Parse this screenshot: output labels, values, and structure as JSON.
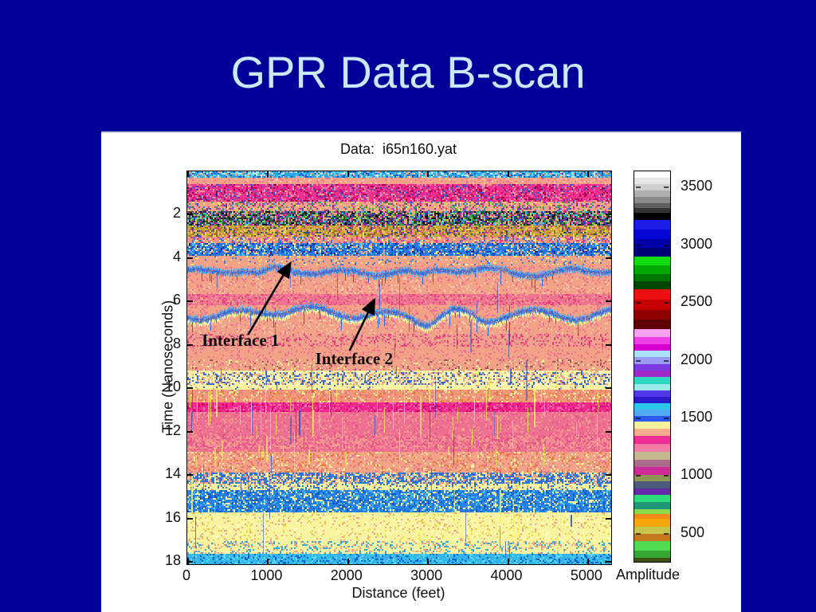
{
  "slide": {
    "title": "GPR Data B-scan",
    "background_color": "#000099",
    "title_color": "#c9e9f8",
    "panel_color": "#ffffff"
  },
  "chart_data": {
    "type": "heatmap",
    "title": "Data:  i65n160.yat",
    "xlabel": "Distance (feet)",
    "ylabel": "Time (Nanoseconds)",
    "x_range": [
      0,
      5300
    ],
    "y_range": [
      0,
      18.1
    ],
    "x_ticks": [
      0,
      1000,
      2000,
      3000,
      4000,
      5000
    ],
    "y_ticks": [
      2,
      4,
      6,
      8,
      10,
      12,
      14,
      16,
      18
    ],
    "grid": false,
    "annotations": [
      {
        "text": "Interface 1",
        "tx": 180,
        "ty": 7.35,
        "arrow": {
          "x1": 760,
          "y1": 7.53,
          "x2": 1290,
          "y2": 4.22
        }
      },
      {
        "text": "Interface 2",
        "tx": 1600,
        "ty": 8.2,
        "arrow": {
          "x1": 2030,
          "y1": 8.26,
          "x2": 2340,
          "y2": 5.91
        }
      }
    ],
    "colorbar": {
      "label": "Amplitude",
      "ticks": [
        {
          "label": "3500",
          "f": 0.041
        },
        {
          "label": "3000",
          "f": 0.19
        },
        {
          "label": "2500",
          "f": 0.337
        },
        {
          "label": "2000",
          "f": 0.486
        },
        {
          "label": "1500",
          "f": 0.633
        },
        {
          "label": "1000",
          "f": 0.78
        },
        {
          "label": "500",
          "f": 0.929
        }
      ],
      "stripes": [
        {
          "h": 8,
          "c": "#FFFFFF"
        },
        {
          "h": 8,
          "c": "#E6E6E6"
        },
        {
          "h": 8,
          "c": "#CFCFCF"
        },
        {
          "h": 8,
          "c": "#AFAFAF"
        },
        {
          "h": 8,
          "c": "#8A8A8A"
        },
        {
          "h": 7,
          "c": "#5E5E5E"
        },
        {
          "h": 6,
          "c": "#333333"
        },
        {
          "h": 9,
          "c": "#000000"
        },
        {
          "h": 12,
          "c": "#1C1CE8"
        },
        {
          "h": 12,
          "c": "#0606D6"
        },
        {
          "h": 11,
          "c": "#0000A6"
        },
        {
          "h": 11,
          "c": "#000076"
        },
        {
          "h": 11,
          "c": "#10DC10"
        },
        {
          "h": 11,
          "c": "#00A800"
        },
        {
          "h": 10,
          "c": "#007600"
        },
        {
          "h": 10,
          "c": "#004600"
        },
        {
          "h": 13,
          "c": "#EE1010"
        },
        {
          "h": 13,
          "c": "#C60000"
        },
        {
          "h": 12,
          "c": "#8E0000"
        },
        {
          "h": 12,
          "c": "#5E0000"
        },
        {
          "h": 10,
          "c": "#F8A0F2"
        },
        {
          "h": 9,
          "c": "#F03EE6"
        },
        {
          "h": 8,
          "c": "#D600CE"
        },
        {
          "h": 9,
          "c": "#A8E0F8"
        },
        {
          "h": 9,
          "c": "#9A9AF2"
        },
        {
          "h": 8,
          "c": "#7A3AE2"
        },
        {
          "h": 8,
          "c": "#A028C8"
        },
        {
          "h": 9,
          "c": "#2CD8C2"
        },
        {
          "h": 8,
          "c": "#9AEAEA"
        },
        {
          "h": 8,
          "c": "#5238E8"
        },
        {
          "h": 8,
          "c": "#2A1AC8"
        },
        {
          "h": 8,
          "c": "#2AC8E8"
        },
        {
          "h": 8,
          "c": "#52AAF2"
        },
        {
          "h": 8,
          "c": "#2A5AF2"
        },
        {
          "h": 9,
          "c": "#F8F09A"
        },
        {
          "h": 9,
          "c": "#F8AC8E"
        },
        {
          "h": 10,
          "c": "#EE2E96"
        },
        {
          "h": 10,
          "c": "#F27AA6"
        },
        {
          "h": 10,
          "c": "#C6B88E"
        },
        {
          "h": 9,
          "c": "#AE6A8A"
        },
        {
          "h": 10,
          "c": "#CE2A96"
        },
        {
          "h": 8,
          "c": "#8E9656"
        },
        {
          "h": 9,
          "c": "#4A5A7A"
        },
        {
          "h": 9,
          "c": "#642AA6"
        },
        {
          "h": 9,
          "c": "#2ADC7A"
        },
        {
          "h": 9,
          "c": "#1E9678"
        },
        {
          "h": 6,
          "c": "#8ED84A"
        },
        {
          "h": 6,
          "c": "#F28A18"
        },
        {
          "h": 10,
          "c": "#F8A60E"
        },
        {
          "h": 9,
          "c": "#C6C64A"
        },
        {
          "h": 9,
          "c": "#C6781C"
        },
        {
          "h": 12,
          "c": "#50DC50"
        },
        {
          "h": 9,
          "c": "#34A634"
        },
        {
          "h": 5,
          "c": "#3E5010"
        }
      ]
    },
    "bands": [
      {
        "t0": 0.0,
        "t1": 0.26,
        "base": "#2EA6E6",
        "palette": [
          "#0F5CD2",
          "#5CD8F8",
          "#BFEFF8",
          "#F2A287"
        ],
        "noise": 0.55
      },
      {
        "t0": 0.26,
        "t1": 0.62,
        "base": "#F2A287",
        "palette": [
          "#F06CA0",
          "#F8C8A8"
        ],
        "noise": 0.18
      },
      {
        "t0": 0.62,
        "t1": 1.42,
        "base": "#F0308E",
        "palette": [
          "#D8006C",
          "#F870B0",
          "#F2A287",
          "#A00050",
          "#3858C8"
        ],
        "noise": 0.45
      },
      {
        "t0": 1.42,
        "t1": 1.86,
        "base": "#F2A287",
        "palette": [
          "#38A838",
          "#3878E0",
          "#F0E060",
          "#F0308E",
          "#803090"
        ],
        "noise": 0.38
      },
      {
        "t0": 1.86,
        "t1": 2.5,
        "base": "#2E2E2E",
        "palette": [
          "#000000",
          "#1A5A1A",
          "#3040B0",
          "#7830A0",
          "#28A058",
          "#C8C838",
          "#E02888",
          "#38C0E8",
          "#F2A287"
        ],
        "noise": 0.92
      },
      {
        "t0": 2.5,
        "t1": 3.02,
        "base": "#C2AA32",
        "palette": [
          "#E8D848",
          "#8A7418",
          "#E08838",
          "#F2A287",
          "#304898",
          "#D83890"
        ],
        "noise": 0.65
      },
      {
        "t0": 3.02,
        "t1": 3.32,
        "base": "#F09580",
        "palette": [
          "#F0308E",
          "#3878E0",
          "#F8E880"
        ],
        "noise": 0.4
      },
      {
        "t0": 3.32,
        "t1": 3.88,
        "base": "#2878E8",
        "palette": [
          "#0F50C0",
          "#48C8F0",
          "#F2A287",
          "#F8E880",
          "#1030A0"
        ],
        "noise": 0.5
      },
      {
        "t0": 3.88,
        "t1": 4.32,
        "base": "#F2A287",
        "palette": [
          "#F8E880",
          "#3878E0"
        ],
        "noise": 0.15
      },
      {
        "t0": 4.32,
        "t1": 4.85,
        "base": "#F2A287",
        "palette": [
          "#F06CA0"
        ],
        "noise": 0.12,
        "wave": {
          "color": "#2468E0",
          "color2": "#48A8F0",
          "amp": 4,
          "th": 4,
          "dips": [
            {
              "x": 90,
              "d": 8,
              "w": 9
            },
            {
              "x": 292,
              "d": 9,
              "w": 10
            }
          ]
        }
      },
      {
        "t0": 4.85,
        "t1": 5.66,
        "base": "#F2A287",
        "palette": [
          "#EE6E90",
          "#F8C8A8"
        ],
        "noise": 0.2
      },
      {
        "t0": 5.66,
        "t1": 6.2,
        "base": "#EE7292",
        "palette": [
          "#F2A287",
          "#E8407E"
        ],
        "noise": 0.3
      },
      {
        "t0": 6.2,
        "t1": 6.85,
        "base": "#F2A287",
        "palette": [
          "#EE7292"
        ],
        "noise": 0.2,
        "wave": {
          "color": "#2468E0",
          "color2": "#48A8F0",
          "amp": 5,
          "th": 4,
          "fringe": "#F8F098",
          "dips": [
            {
              "x": 300,
              "d": 10,
              "w": 12
            },
            {
              "x": 372,
              "d": 13,
              "w": 16
            }
          ]
        }
      },
      {
        "t0": 6.85,
        "t1": 7.5,
        "base": "#F2A287",
        "palette": [
          "#EE7292",
          "#F8C8A8"
        ],
        "noise": 0.18
      },
      {
        "t0": 7.5,
        "t1": 8.06,
        "base": "#EFA38A",
        "palette": [
          "#EE7292",
          "#E8407E"
        ],
        "noise": 0.3
      },
      {
        "t0": 8.06,
        "t1": 8.68,
        "base": "#F2A287",
        "palette": [
          "#EE7292"
        ],
        "noise": 0.15
      },
      {
        "t0": 8.68,
        "t1": 9.2,
        "base": "#F2A287",
        "palette": [
          "#A05858",
          "#EE7292",
          "#F8F098"
        ],
        "noise": 0.25
      },
      {
        "t0": 9.2,
        "t1": 10.05,
        "base": "#F8F4A0",
        "palette": [
          "#3868D8",
          "#F2A287",
          "#FCFCC8"
        ],
        "noise": 0.2,
        "sline": 9.55
      },
      {
        "t0": 10.05,
        "t1": 10.62,
        "base": "#F09878",
        "palette": [
          "#E87838",
          "#EE7292",
          "#F8F098"
        ],
        "noise": 0.3
      },
      {
        "t0": 10.62,
        "t1": 11.1,
        "base": "#F0288C",
        "palette": [
          "#D8006C",
          "#F870B0"
        ],
        "noise": 0.3
      },
      {
        "t0": 11.1,
        "t1": 12.95,
        "base": "#EE7090",
        "palette": [
          "#E8548A",
          "#F2889A",
          "#F2A287"
        ],
        "noise": 0.25,
        "sline": 12.5
      },
      {
        "t0": 12.95,
        "t1": 13.85,
        "base": "#F2A287",
        "palette": [
          "#EE7090",
          "#E87838",
          "#F8F098"
        ],
        "noise": 0.28
      },
      {
        "t0": 13.85,
        "t1": 14.65,
        "base": "#F8F4A0",
        "palette": [
          "#3868D8",
          "#2880E0",
          "#F2A287"
        ],
        "noise": 0.3,
        "sline": 14.1
      },
      {
        "t0": 14.65,
        "t1": 15.72,
        "base": "#2880E8",
        "palette": [
          "#0F58C8",
          "#48C0F0",
          "#F8F4A0"
        ],
        "noise": 0.45
      },
      {
        "t0": 15.72,
        "t1": 17.05,
        "base": "#F8F4A0",
        "palette": [
          "#F2A287",
          "#FFFFD0",
          "#E8D848"
        ],
        "noise": 0.18
      },
      {
        "t0": 17.05,
        "t1": 17.6,
        "base": "#F8F4A0",
        "palette": [
          "#38A8E0",
          "#F2A287"
        ],
        "noise": 0.3
      },
      {
        "t0": 17.6,
        "t1": 18.2,
        "base": "#38B0E8",
        "palette": [
          "#1060D0",
          "#60D8F0",
          "#28C8E8"
        ],
        "noise": 0.5
      }
    ],
    "streaks": [
      {
        "count": 70,
        "colors": [
          "#F8F060"
        ],
        "tmin": 9.0,
        "tmax": 13.6
      },
      {
        "count": 50,
        "colors": [
          "#3060D8",
          "#2850B8"
        ],
        "tmin": 4.3,
        "tmax": 18.0
      },
      {
        "count": 25,
        "colors": [
          "#F8F060"
        ],
        "tmin": 13.8,
        "tmax": 17.6
      }
    ]
  }
}
